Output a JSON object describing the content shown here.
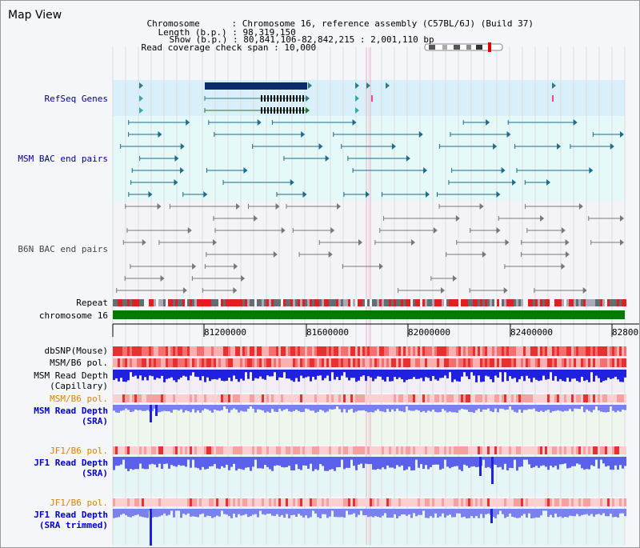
{
  "window_title": "Map View",
  "header": {
    "chromosome_label": "Chromosome",
    "chromosome_value": "Chromosome 16, reference assembly (C57BL/6J) (Build 37)",
    "length_label": "Length (b.p.)",
    "length_value": "98,319,150",
    "show_label": "Show (b.p.)",
    "show_value": "80,841,106-82,842,215 : 2,001,110 bp",
    "coverage_label": "Read coverage check span",
    "coverage_value": "10,000"
  },
  "tracks": {
    "refseq": "RefSeq Genes",
    "msm_bac": "MSM BAC end pairs",
    "b6n_bac": "B6N BAC end pairs",
    "repeat": "Repeat",
    "chromosome": "chromosome 16",
    "dbsnp": "dbSNP(Mouse)",
    "msm_b6_pol": "MSM/B6 pol.",
    "msm_read_depth_cap_1": "MSM Read Depth",
    "msm_read_depth_cap_2": "(Capillary)",
    "msm_b6_pol_2": "MSM/B6 pol.",
    "msm_read_depth_sra_1": "MSM Read Depth",
    "msm_read_depth_sra_2": "(SRA)",
    "jf1_b6_pol": "JF1/B6 pol.",
    "jf1_read_depth_sra_1": "JF1 Read Depth",
    "jf1_read_depth_sra_2": "(SRA)",
    "jf1_b6_pol_2": "JF1/B6 pol.",
    "jf1_read_depth_trim_1": "JF1 Read Depth",
    "jf1_read_depth_trim_2": "(SRA trimmed)"
  },
  "axis": {
    "ticks": [
      "81200000",
      "81600000",
      "82000000",
      "82400000",
      "82800"
    ]
  },
  "colors": {
    "refseq_bg": "#d9eff9",
    "bac_bg": "#e6f9f9",
    "b6n_bg": "#f4f4f8",
    "refseq_feature": "#2a7f83",
    "msm_feature": "#1d6c8a",
    "b6n_feature": "#666666",
    "label_blue": "#000088",
    "label_orange": "#e08000",
    "chromosome_green": "#007a00",
    "depth_blue": "#2020e0",
    "depth_light": "#7a80ee"
  }
}
